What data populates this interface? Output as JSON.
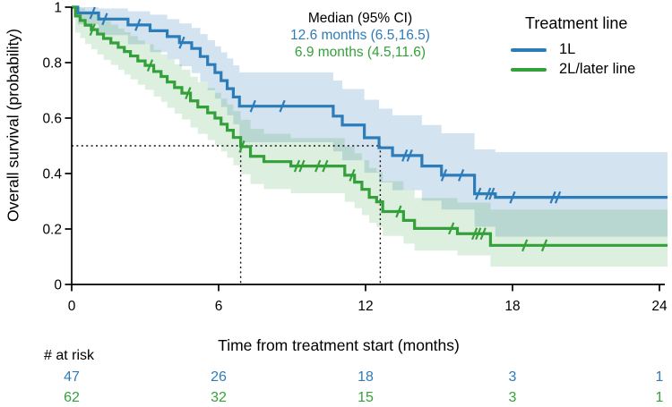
{
  "chart_data": {
    "type": "line",
    "subtype": "kaplan-meier",
    "xlabel": "Time from treatment start (months)",
    "ylabel": "Overall survival (probability)",
    "xlim": [
      0,
      24
    ],
    "ylim": [
      0,
      1
    ],
    "xticks": [
      0,
      6,
      12,
      18,
      24
    ],
    "xtick_labels": [
      "0",
      "6",
      "12",
      "18",
      "24"
    ],
    "yticks": [
      1,
      0.8,
      0.6,
      0.4,
      0.2,
      0
    ],
    "ytick_labels": [
      "1",
      "0.8",
      "0.6",
      "0.4",
      "0.2",
      "0"
    ],
    "grid": false,
    "annotation": {
      "title": "Median (95% CI)",
      "line1": "12.6 months (6.5,16.5)",
      "line2": "6.9 months (4.5,11.6)"
    },
    "legend": {
      "title": "Treatment line",
      "entry1": "1L",
      "entry2": "2L/later line",
      "position": "top-right"
    },
    "colors": {
      "blue": "#2d7cba",
      "green": "#34a03a"
    },
    "reference_lines": {
      "y": 0.5,
      "x": [
        6.9,
        12.6
      ]
    },
    "series": [
      {
        "name": "1L",
        "color": "#2d7cba",
        "fill": "rgba(45,124,186,0.21)",
        "median": 12.6,
        "steps": [
          [
            0,
            1
          ],
          [
            0.25,
            0.979
          ],
          [
            1.1,
            0.957
          ],
          [
            2.3,
            0.936
          ],
          [
            3.2,
            0.915
          ],
          [
            3.9,
            0.894
          ],
          [
            4.4,
            0.872
          ],
          [
            4.9,
            0.851
          ],
          [
            5.25,
            0.822
          ],
          [
            5.55,
            0.793
          ],
          [
            5.85,
            0.764
          ],
          [
            6.1,
            0.735
          ],
          [
            6.35,
            0.706
          ],
          [
            6.6,
            0.676
          ],
          [
            6.85,
            0.643
          ],
          [
            10.68,
            0.607
          ],
          [
            11.05,
            0.575
          ],
          [
            11.95,
            0.529
          ],
          [
            12.55,
            0.493
          ],
          [
            13.1,
            0.465
          ],
          [
            14.3,
            0.427
          ],
          [
            15.1,
            0.394
          ],
          [
            16.45,
            0.327
          ],
          [
            17.3,
            0.314
          ],
          [
            24,
            0.314
          ]
        ],
        "censors": [
          0.85,
          1.35,
          2.7,
          4.5,
          7.4,
          8.6,
          13.6,
          13.8,
          15.2,
          15.9,
          16.6,
          17.0,
          17.15,
          18.0,
          19.65,
          19.85
        ],
        "upper": [
          [
            0,
            1
          ],
          [
            0.25,
            1
          ],
          [
            1.1,
            0.995
          ],
          [
            2.3,
            0.985
          ],
          [
            3.2,
            0.973
          ],
          [
            3.9,
            0.957
          ],
          [
            4.4,
            0.941
          ],
          [
            4.9,
            0.925
          ],
          [
            5.25,
            0.903
          ],
          [
            5.55,
            0.881
          ],
          [
            5.85,
            0.859
          ],
          [
            6.1,
            0.837
          ],
          [
            6.35,
            0.815
          ],
          [
            6.6,
            0.79
          ],
          [
            6.85,
            0.765
          ],
          [
            10.68,
            0.735
          ],
          [
            11.05,
            0.705
          ],
          [
            11.95,
            0.666
          ],
          [
            12.55,
            0.634
          ],
          [
            13.1,
            0.61
          ],
          [
            14.3,
            0.575
          ],
          [
            15.1,
            0.545
          ],
          [
            16.45,
            0.487
          ],
          [
            17.3,
            0.477
          ],
          [
            24,
            0.477
          ]
        ],
        "lower": [
          [
            0,
            1
          ],
          [
            0.25,
            0.938
          ],
          [
            1.1,
            0.899
          ],
          [
            2.3,
            0.866
          ],
          [
            3.2,
            0.838
          ],
          [
            3.9,
            0.812
          ],
          [
            4.4,
            0.787
          ],
          [
            4.9,
            0.762
          ],
          [
            5.25,
            0.73
          ],
          [
            5.55,
            0.7
          ],
          [
            5.85,
            0.67
          ],
          [
            6.1,
            0.64
          ],
          [
            6.35,
            0.61
          ],
          [
            6.6,
            0.578
          ],
          [
            6.85,
            0.513
          ],
          [
            10.68,
            0.48
          ],
          [
            11.05,
            0.448
          ],
          [
            11.95,
            0.403
          ],
          [
            12.55,
            0.368
          ],
          [
            13.1,
            0.34
          ],
          [
            14.3,
            0.302
          ],
          [
            15.1,
            0.27
          ],
          [
            16.45,
            0.208
          ],
          [
            17.3,
            0.172
          ],
          [
            24,
            0.172
          ]
        ]
      },
      {
        "name": "2L/later line",
        "color": "#34a03a",
        "fill": "rgba(52,160,58,0.17)",
        "median": 6.9,
        "steps": [
          [
            0,
            1
          ],
          [
            0.15,
            0.968
          ],
          [
            0.35,
            0.952
          ],
          [
            0.55,
            0.935
          ],
          [
            0.8,
            0.919
          ],
          [
            1.05,
            0.903
          ],
          [
            1.3,
            0.887
          ],
          [
            1.6,
            0.871
          ],
          [
            1.9,
            0.855
          ],
          [
            2.15,
            0.84
          ],
          [
            2.4,
            0.824
          ],
          [
            2.7,
            0.806
          ],
          [
            3.0,
            0.79
          ],
          [
            3.35,
            0.768
          ],
          [
            3.65,
            0.75
          ],
          [
            3.9,
            0.73
          ],
          [
            4.2,
            0.71
          ],
          [
            4.5,
            0.69
          ],
          [
            4.85,
            0.662
          ],
          [
            5.15,
            0.64
          ],
          [
            5.55,
            0.619
          ],
          [
            5.85,
            0.6
          ],
          [
            6.1,
            0.578
          ],
          [
            6.35,
            0.556
          ],
          [
            6.6,
            0.53
          ],
          [
            6.9,
            0.497
          ],
          [
            7.3,
            0.462
          ],
          [
            7.85,
            0.443
          ],
          [
            8.95,
            0.427
          ],
          [
            11.15,
            0.394
          ],
          [
            11.55,
            0.369
          ],
          [
            11.85,
            0.343
          ],
          [
            12.15,
            0.314
          ],
          [
            12.45,
            0.298
          ],
          [
            12.7,
            0.263
          ],
          [
            13.55,
            0.231
          ],
          [
            14.0,
            0.202
          ],
          [
            15.75,
            0.183
          ],
          [
            17.1,
            0.141
          ],
          [
            24,
            0.141
          ]
        ],
        "censors": [
          0.85,
          3.2,
          4.75,
          6.95,
          9.2,
          9.4,
          10.05,
          10.35,
          11.45,
          13.35,
          15.5,
          16.45,
          16.6,
          16.8,
          18.5,
          19.3
        ],
        "upper": [
          [
            0,
            1
          ],
          [
            0.15,
            1
          ],
          [
            0.35,
            0.995
          ],
          [
            0.55,
            0.986
          ],
          [
            0.8,
            0.975
          ],
          [
            1.05,
            0.963
          ],
          [
            1.3,
            0.95
          ],
          [
            1.6,
            0.937
          ],
          [
            1.9,
            0.923
          ],
          [
            2.15,
            0.91
          ],
          [
            2.4,
            0.896
          ],
          [
            2.7,
            0.88
          ],
          [
            3.0,
            0.866
          ],
          [
            3.35,
            0.846
          ],
          [
            3.65,
            0.83
          ],
          [
            3.9,
            0.812
          ],
          [
            4.2,
            0.794
          ],
          [
            4.5,
            0.775
          ],
          [
            4.85,
            0.749
          ],
          [
            5.15,
            0.729
          ],
          [
            5.55,
            0.709
          ],
          [
            5.85,
            0.691
          ],
          [
            6.1,
            0.67
          ],
          [
            6.35,
            0.649
          ],
          [
            6.6,
            0.625
          ],
          [
            6.9,
            0.594
          ],
          [
            7.3,
            0.561
          ],
          [
            7.85,
            0.543
          ],
          [
            8.95,
            0.528
          ],
          [
            11.15,
            0.497
          ],
          [
            11.55,
            0.473
          ],
          [
            11.85,
            0.448
          ],
          [
            12.15,
            0.42
          ],
          [
            12.45,
            0.405
          ],
          [
            12.7,
            0.372
          ],
          [
            13.55,
            0.34
          ],
          [
            14.0,
            0.312
          ],
          [
            15.75,
            0.295
          ],
          [
            17.1,
            0.27
          ],
          [
            24,
            0.27
          ]
        ],
        "lower": [
          [
            0,
            1
          ],
          [
            0.15,
            0.908
          ],
          [
            0.35,
            0.888
          ],
          [
            0.55,
            0.867
          ],
          [
            0.8,
            0.848
          ],
          [
            1.05,
            0.829
          ],
          [
            1.3,
            0.81
          ],
          [
            1.6,
            0.792
          ],
          [
            1.9,
            0.774
          ],
          [
            2.15,
            0.757
          ],
          [
            2.4,
            0.74
          ],
          [
            2.7,
            0.72
          ],
          [
            3.0,
            0.702
          ],
          [
            3.35,
            0.678
          ],
          [
            3.65,
            0.659
          ],
          [
            3.9,
            0.637
          ],
          [
            4.2,
            0.616
          ],
          [
            4.5,
            0.595
          ],
          [
            4.85,
            0.566
          ],
          [
            5.15,
            0.543
          ],
          [
            5.55,
            0.521
          ],
          [
            5.85,
            0.502
          ],
          [
            6.1,
            0.48
          ],
          [
            6.35,
            0.457
          ],
          [
            6.6,
            0.43
          ],
          [
            6.9,
            0.397
          ],
          [
            7.3,
            0.362
          ],
          [
            7.85,
            0.344
          ],
          [
            8.95,
            0.329
          ],
          [
            11.15,
            0.298
          ],
          [
            11.55,
            0.275
          ],
          [
            11.85,
            0.25
          ],
          [
            12.15,
            0.222
          ],
          [
            12.45,
            0.207
          ],
          [
            12.7,
            0.175
          ],
          [
            13.55,
            0.147
          ],
          [
            14.0,
            0.122
          ],
          [
            15.75,
            0.105
          ],
          [
            17.1,
            0.064
          ],
          [
            24,
            0.064
          ]
        ]
      }
    ],
    "risk_table": {
      "label": "# at risk",
      "times": [
        0,
        6,
        12,
        18,
        24
      ],
      "rows": [
        {
          "name": "1L",
          "color": "#2d7cba",
          "counts": [
            "47",
            "26",
            "18",
            "3",
            "1"
          ]
        },
        {
          "name": "2L/later line",
          "color": "#34a03a",
          "counts": [
            "62",
            "32",
            "15",
            "3",
            "1"
          ]
        }
      ]
    }
  }
}
